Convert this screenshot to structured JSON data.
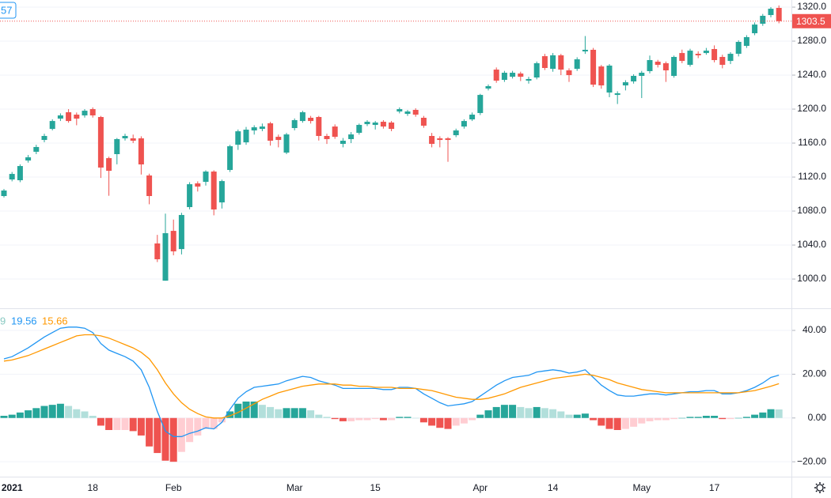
{
  "chart_data": [
    {
      "type": "candlestick",
      "legend_text": "57",
      "up_color": "#26a69a",
      "down_color": "#ef5350",
      "open": [
        1097.7,
        1117.2,
        1116.3,
        1139.5,
        1149.8,
        1163.7,
        1176.7,
        1188.8,
        1196.3,
        1193.5,
        1192.6,
        1200.0,
        1190.7,
        1142.3,
        1147.0,
        1165.6,
        1165.6,
        1165.6,
        1121.9,
        1041.9,
        998.1,
        1056.7,
        1035.3,
        1084.7,
        1112.6,
        1114.4,
        1126.5,
        1090.2,
        1128.4,
        1158.1,
        1160.9,
        1174.9,
        1176.7,
        1183.3,
        1167.4,
        1148.8,
        1177.7,
        1186.0,
        1189.8,
        1190.7,
        1168.4,
        1179.5,
        1159.1,
        1164.7,
        1172.1,
        1182.3,
        1181.4,
        1185.1,
        1184.2,
        1197.2,
        1194.4,
        1199.1,
        1189.8,
        1168.4,
        1165.6,
        1165.6,
        1169.3,
        1179.5,
        1187.9,
        1195.4,
        1224.2,
        1246.5,
        1234.4,
        1238.1,
        1241.9,
        1233.5,
        1237.2,
        1262.3,
        1247.4,
        1263.3,
        1245.6,
        1247.4,
        1267.9,
        1269.8,
        1250.2,
        1219.5,
        1216.7,
        1227.9,
        1232.6,
        1239.1,
        1244.7,
        1255.8,
        1254.0,
        1239.1,
        1266.0,
        1252.1,
        1265.1,
        1266.0,
        1270.7,
        1261.4,
        1256.7,
        1265.1,
        1274.4,
        1289.3,
        1300.5,
        1310.7,
        1319.1
      ],
      "high": [
        1106,
        1126,
        1135,
        1146,
        1158,
        1171,
        1188,
        1195,
        1200,
        1196,
        1200,
        1202,
        1192,
        1144,
        1166,
        1171,
        1170,
        1168,
        1124,
        1052,
        1077,
        1070,
        1078,
        1114,
        1115,
        1128,
        1128,
        1117,
        1158,
        1176,
        1179,
        1181,
        1183,
        1185,
        1170,
        1172,
        1189,
        1198,
        1192,
        1192,
        1171,
        1182,
        1166,
        1173,
        1183,
        1187,
        1186,
        1187,
        1186,
        1202,
        1199,
        1201,
        1192,
        1172,
        1168,
        1167,
        1177,
        1188,
        1196,
        1218,
        1229,
        1249,
        1245,
        1245,
        1244,
        1238,
        1256,
        1265,
        1266,
        1265,
        1248,
        1261,
        1286,
        1272,
        1252,
        1253,
        1221,
        1234,
        1241,
        1245,
        1263,
        1258,
        1256,
        1263,
        1270,
        1271,
        1268,
        1272,
        1275,
        1264,
        1267,
        1281,
        1287,
        1302,
        1312,
        1320,
        1322
      ],
      "low": [
        1096,
        1115,
        1114,
        1137,
        1147,
        1161,
        1175,
        1186,
        1184,
        1181,
        1190,
        1190,
        1119,
        1098,
        1135,
        1163,
        1160,
        1123,
        1088,
        1020,
        998,
        1028,
        1029,
        1082,
        1103,
        1110,
        1075,
        1083,
        1126,
        1152,
        1158,
        1170,
        1174,
        1157,
        1155,
        1147,
        1175,
        1184,
        1183,
        1163,
        1159,
        1165,
        1155,
        1160,
        1170,
        1180,
        1176,
        1177,
        1174,
        1195,
        1192,
        1191,
        1178,
        1155,
        1155,
        1138,
        1167,
        1177,
        1186,
        1193,
        1222,
        1231,
        1232,
        1236,
        1233,
        1230,
        1235,
        1246,
        1244,
        1240,
        1232,
        1245,
        1265,
        1226,
        1224,
        1214,
        1206,
        1222,
        1230,
        1213,
        1242,
        1249,
        1232,
        1237,
        1254,
        1250,
        1260,
        1264,
        1255,
        1248,
        1253,
        1262,
        1272,
        1287,
        1298,
        1308,
        1301
      ],
      "close": [
        1104.2,
        1123.7,
        1133.0,
        1143.3,
        1155.4,
        1168.4,
        1186.0,
        1192.6,
        1186.0,
        1188.8,
        1198.1,
        1192.6,
        1131.2,
        1127.4,
        1164.7,
        1168.4,
        1162.8,
        1134.9,
        1097.7,
        1023.3,
        1054.0,
        1032.6,
        1075.4,
        1111.6,
        1108.8,
        1126.5,
        1081.9,
        1115.3,
        1156.3,
        1173.9,
        1175.8,
        1178.6,
        1179.5,
        1162.8,
        1163.7,
        1170.2,
        1187.0,
        1196.3,
        1186.0,
        1168.4,
        1164.7,
        1167.4,
        1162.8,
        1170.2,
        1181.4,
        1185.1,
        1184.2,
        1179.5,
        1176.7,
        1200.0,
        1197.2,
        1193.5,
        1180.5,
        1159.1,
        1163.7,
        1163.7,
        1174.9,
        1186.0,
        1193.5,
        1216.7,
        1227.0,
        1233.5,
        1242.8,
        1242.8,
        1238.1,
        1235.4,
        1254.0,
        1248.4,
        1263.3,
        1246.5,
        1240.0,
        1258.6,
        1269.8,
        1228.8,
        1227.9,
        1251.2,
        1218.6,
        1231.6,
        1239.1,
        1242.8,
        1257.7,
        1252.1,
        1245.6,
        1261.4,
        1256.7,
        1268.8,
        1263.3,
        1268.8,
        1257.7,
        1252.1,
        1265.1,
        1279.1,
        1284.7,
        1299.5,
        1309.8,
        1318.1,
        1303.5
      ],
      "xlim": [
        -0.49,
        97.55
      ],
      "xticks": [
        {
          "value": 1,
          "label": "2021"
        },
        {
          "value": 11,
          "label": "18"
        },
        {
          "value": 21,
          "label": "Feb"
        },
        {
          "value": 36,
          "label": "Mar"
        },
        {
          "value": 46,
          "label": "15"
        },
        {
          "value": 59,
          "label": "Apr"
        },
        {
          "value": 68,
          "label": "14"
        },
        {
          "value": 79,
          "label": "May"
        },
        {
          "value": 88,
          "label": "17"
        }
      ],
      "ylim": [
        965.6,
        1328.4
      ],
      "yticks": [
        {
          "value": 1000,
          "label": "1000.0"
        },
        {
          "value": 1040,
          "label": "1040.0"
        },
        {
          "value": 1080,
          "label": "1080.0"
        },
        {
          "value": 1120,
          "label": "1120.0"
        },
        {
          "value": 1160,
          "label": "1160.0"
        },
        {
          "value": 1200,
          "label": "1200.0"
        },
        {
          "value": 1240,
          "label": "1240.0"
        },
        {
          "value": 1280,
          "label": "1280.0"
        },
        {
          "value": 1320,
          "label": "1320.0"
        }
      ],
      "grid": true
    },
    {
      "type": "macd",
      "legend_text": "9",
      "histogram_colors": [
        "#26a69a",
        "#b2dfdb",
        "#ffcdd2",
        "#ef5350"
      ],
      "histogram": [
        1,
        1.5,
        2.5,
        3.5,
        4.5,
        5.5,
        6,
        6.5,
        5.5,
        4,
        3,
        1,
        -3.5,
        -5.5,
        -5.5,
        -5.5,
        -6,
        -8,
        -13,
        -16,
        -19.5,
        -20,
        -15.5,
        -11,
        -8,
        -5,
        -5,
        -2,
        3,
        6.5,
        7.5,
        7.5,
        6,
        5,
        4,
        4.5,
        4.5,
        4.5,
        3.5,
        1.5,
        0.5,
        -0.5,
        -1.5,
        -1.5,
        -1,
        -1,
        -0.5,
        -1,
        -1,
        0.5,
        0.5,
        0,
        -2,
        -3.5,
        -4.5,
        -5,
        -3.5,
        -2.5,
        -1,
        1.5,
        3.5,
        5,
        6,
        6,
        5,
        4.5,
        5,
        4.5,
        4,
        3,
        1.5,
        1.5,
        2,
        -1,
        -3.5,
        -5,
        -5.5,
        -5,
        -4,
        -2.5,
        -1.5,
        -1,
        -1,
        -0.5,
        0,
        0.5,
        0.5,
        1,
        1,
        -0.5,
        -0.5,
        0,
        0.5,
        1.5,
        2.5,
        4,
        3.9
      ],
      "series": [
        {
          "color": "#2196f3",
          "values": [
            27,
            28,
            30,
            32,
            34.5,
            37,
            39,
            41,
            41.5,
            41.5,
            41,
            39,
            34,
            31,
            29.5,
            28,
            26,
            22,
            14,
            3,
            -6,
            -8.5,
            -8.5,
            -7,
            -6,
            -4.5,
            -5,
            -2,
            4,
            9,
            12,
            14,
            14.5,
            15,
            15.5,
            17,
            18,
            19,
            18.5,
            17,
            16,
            15,
            13.5,
            13.5,
            13.5,
            13.5,
            13.5,
            13,
            13,
            14,
            14,
            13.5,
            11,
            9,
            7,
            5.5,
            6,
            6.5,
            7.5,
            10,
            12.5,
            15,
            17,
            18.5,
            19,
            19.5,
            21,
            21.5,
            22,
            21.5,
            20.5,
            21,
            22,
            18.5,
            15,
            12.5,
            10.5,
            10,
            10,
            10.5,
            11,
            11,
            10.5,
            11,
            11.5,
            12,
            12,
            12.5,
            12.5,
            11,
            11,
            11.5,
            12.5,
            14,
            16,
            18.5,
            19.56
          ]
        },
        {
          "color": "#ff9800",
          "values": [
            26,
            26.5,
            27.5,
            28.5,
            30,
            31.5,
            33,
            34.5,
            36,
            37.5,
            38,
            38,
            37.5,
            36.5,
            35,
            33.5,
            32,
            30,
            27,
            22,
            16,
            11,
            7,
            4,
            2,
            0.5,
            0,
            0,
            1,
            2.5,
            4.5,
            6.5,
            8.5,
            10,
            11.5,
            12.5,
            13.5,
            14.5,
            15,
            15.5,
            15.5,
            15.5,
            15,
            15,
            14.5,
            14.5,
            14,
            14,
            14,
            13.5,
            13.5,
            13.5,
            13,
            12.5,
            11.5,
            10.5,
            9.5,
            9,
            8.5,
            8.5,
            9,
            10,
            11,
            12.5,
            14,
            15,
            16,
            17,
            18,
            18.5,
            19,
            19.5,
            20,
            19.5,
            18.5,
            17.5,
            16,
            15,
            14,
            13,
            12.5,
            12,
            11.5,
            11.5,
            11.5,
            11.5,
            11.5,
            11.5,
            11.5,
            11.5,
            11.5,
            11.5,
            12,
            12.5,
            13.5,
            14.5,
            15.66
          ]
        }
      ],
      "ylim": [
        -26.8,
        50.1
      ],
      "yticks": [
        {
          "value": -20,
          "label": "−20.00"
        },
        {
          "value": 0,
          "label": "0.00"
        },
        {
          "value": 20,
          "label": "20.00"
        },
        {
          "value": 40,
          "label": "40.00"
        }
      ],
      "grid": true
    }
  ]
}
